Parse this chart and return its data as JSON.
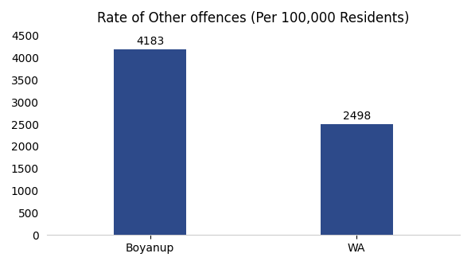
{
  "categories": [
    "Boyanup",
    "WA"
  ],
  "values": [
    4183,
    2498
  ],
  "bar_color": "#2d4a8a",
  "title": "Rate of Other offences (Per 100,000 Residents)",
  "title_fontsize": 12,
  "ylim": [
    0,
    4500
  ],
  "yticks": [
    0,
    500,
    1000,
    1500,
    2000,
    2500,
    3000,
    3500,
    4000,
    4500
  ],
  "bar_width": 0.35,
  "tick_fontsize": 10,
  "background_color": "#ffffff",
  "annotation_fontsize": 10,
  "annotation_fontweight": "normal"
}
